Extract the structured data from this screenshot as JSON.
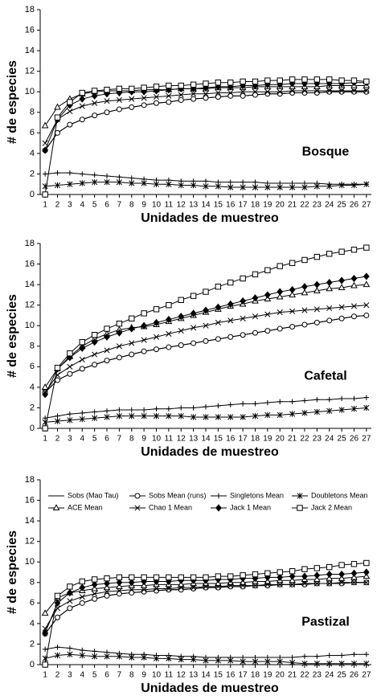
{
  "chart_data": [
    {
      "type": "line",
      "annotation": "Bosque",
      "xlabel": "Unidades de muestreo",
      "ylabel": "# de especies",
      "x": [
        1,
        2,
        3,
        4,
        5,
        6,
        7,
        8,
        9,
        10,
        11,
        12,
        13,
        14,
        15,
        16,
        17,
        18,
        19,
        20,
        21,
        22,
        23,
        24,
        25,
        26,
        27
      ],
      "xlim": [
        0.6,
        27.4
      ],
      "xticks": [
        1,
        2,
        3,
        4,
        5,
        6,
        7,
        8,
        9,
        10,
        11,
        12,
        13,
        14,
        15,
        16,
        17,
        18,
        19,
        20,
        21,
        22,
        23,
        24,
        25,
        26,
        27
      ],
      "ylim": [
        0,
        18
      ],
      "yticks": [
        0,
        2,
        4,
        6,
        8,
        10,
        12,
        14,
        16,
        18
      ],
      "series": [
        {
          "color": "#000000",
          "marker": "none",
          "values": [
            4.3,
            6.0,
            6.8,
            7.3,
            7.7,
            8.0,
            8.3,
            8.5,
            8.7,
            8.9,
            9.0,
            9.2,
            9.3,
            9.4,
            9.5,
            9.6,
            9.6,
            9.7,
            9.8,
            9.8,
            9.9,
            9.9,
            9.9,
            10.0,
            10.0,
            10.0,
            10.0
          ]
        },
        {
          "color": "#000000",
          "marker": "circle",
          "values": [
            4.3,
            6.0,
            6.8,
            7.3,
            7.7,
            8.0,
            8.3,
            8.5,
            8.7,
            8.9,
            9.0,
            9.2,
            9.3,
            9.4,
            9.5,
            9.6,
            9.6,
            9.7,
            9.8,
            9.8,
            9.9,
            9.9,
            9.9,
            10.0,
            10.0,
            10.0,
            10.0
          ]
        },
        {
          "color": "#000000",
          "marker": "plus",
          "values": [
            2.0,
            2.1,
            2.1,
            2.0,
            1.9,
            1.8,
            1.7,
            1.6,
            1.5,
            1.4,
            1.4,
            1.3,
            1.3,
            1.3,
            1.2,
            1.2,
            1.2,
            1.2,
            1.1,
            1.1,
            1.1,
            1.1,
            1.1,
            1.0,
            1.0,
            1.0,
            1.0
          ]
        },
        {
          "color": "#000000",
          "marker": "star",
          "values": [
            0.8,
            0.9,
            1.0,
            1.1,
            1.2,
            1.2,
            1.2,
            1.1,
            1.1,
            1.0,
            1.0,
            0.9,
            0.9,
            0.8,
            0.8,
            0.7,
            0.7,
            0.7,
            0.7,
            0.7,
            0.7,
            0.7,
            0.8,
            0.8,
            0.9,
            0.9,
            1.0
          ]
        },
        {
          "color": "#000000",
          "marker": "triangle",
          "values": [
            6.7,
            8.5,
            9.3,
            9.8,
            10.0,
            10.1,
            10.1,
            10.1,
            10.2,
            10.2,
            10.2,
            10.3,
            10.3,
            10.3,
            10.4,
            10.4,
            10.4,
            10.5,
            10.5,
            10.5,
            10.5,
            10.5,
            10.5,
            10.6,
            10.6,
            10.6,
            10.6
          ]
        },
        {
          "color": "#000000",
          "marker": "x",
          "values": [
            5.0,
            7.3,
            8.1,
            8.6,
            8.9,
            9.1,
            9.2,
            9.3,
            9.4,
            9.5,
            9.6,
            9.7,
            9.8,
            9.8,
            9.9,
            9.9,
            10.0,
            10.0,
            10.0,
            10.0,
            10.1,
            10.1,
            10.1,
            10.1,
            10.1,
            10.1,
            10.1
          ]
        },
        {
          "color": "#000000",
          "marker": "diamond",
          "values": [
            4.3,
            7.3,
            8.7,
            9.3,
            9.6,
            9.8,
            9.9,
            10.0,
            10.0,
            10.1,
            10.2,
            10.3,
            10.3,
            10.4,
            10.5,
            10.5,
            10.6,
            10.6,
            10.7,
            10.7,
            10.8,
            10.8,
            10.8,
            10.8,
            10.8,
            10.9,
            10.9
          ]
        },
        {
          "color": "#000000",
          "marker": "square",
          "values": [
            0.0,
            7.5,
            9.0,
            9.9,
            10.1,
            10.2,
            10.3,
            10.3,
            10.4,
            10.5,
            10.6,
            10.6,
            10.7,
            10.8,
            10.9,
            10.9,
            11.0,
            11.0,
            11.1,
            11.1,
            11.2,
            11.2,
            11.2,
            11.2,
            11.1,
            11.1,
            11.0
          ]
        }
      ]
    },
    {
      "type": "line",
      "annotation": "Cafetal",
      "xlabel": "Unidades de muestreo",
      "ylabel": "# de especies",
      "x": [
        1,
        2,
        3,
        4,
        5,
        6,
        7,
        8,
        9,
        10,
        11,
        12,
        13,
        14,
        15,
        16,
        17,
        18,
        19,
        20,
        21,
        22,
        23,
        24,
        25,
        26,
        27
      ],
      "xlim": [
        0.6,
        27.4
      ],
      "xticks": [
        1,
        2,
        3,
        4,
        5,
        6,
        7,
        8,
        9,
        10,
        11,
        12,
        13,
        14,
        15,
        16,
        17,
        18,
        19,
        20,
        21,
        22,
        23,
        24,
        25,
        26,
        27
      ],
      "ylim": [
        0,
        18
      ],
      "yticks": [
        0,
        2,
        4,
        6,
        8,
        10,
        12,
        14,
        16,
        18
      ],
      "series": [
        {
          "color": "#000000",
          "marker": "none",
          "values": [
            3.5,
            4.7,
            5.3,
            5.8,
            6.2,
            6.6,
            6.9,
            7.2,
            7.5,
            7.7,
            7.9,
            8.1,
            8.3,
            8.5,
            8.7,
            8.9,
            9.1,
            9.3,
            9.5,
            9.7,
            9.9,
            10.1,
            10.3,
            10.5,
            10.7,
            10.9,
            11.0
          ]
        },
        {
          "color": "#000000",
          "marker": "circle",
          "values": [
            3.5,
            4.7,
            5.3,
            5.8,
            6.2,
            6.6,
            6.9,
            7.2,
            7.5,
            7.7,
            7.9,
            8.1,
            8.3,
            8.5,
            8.7,
            8.9,
            9.1,
            9.3,
            9.5,
            9.7,
            9.9,
            10.1,
            10.3,
            10.5,
            10.7,
            10.9,
            11.0
          ]
        },
        {
          "color": "#000000",
          "marker": "plus",
          "values": [
            1.0,
            1.2,
            1.4,
            1.5,
            1.6,
            1.7,
            1.8,
            1.8,
            1.8,
            1.9,
            1.9,
            2.0,
            2.0,
            2.1,
            2.2,
            2.3,
            2.4,
            2.4,
            2.5,
            2.6,
            2.6,
            2.7,
            2.8,
            2.8,
            2.9,
            2.9,
            3.0
          ]
        },
        {
          "color": "#000000",
          "marker": "star",
          "values": [
            0.6,
            0.7,
            0.8,
            0.9,
            1.0,
            1.1,
            1.2,
            1.2,
            1.2,
            1.2,
            1.2,
            1.2,
            1.1,
            1.1,
            1.1,
            1.1,
            1.1,
            1.2,
            1.3,
            1.3,
            1.4,
            1.5,
            1.6,
            1.7,
            1.8,
            1.9,
            2.0
          ]
        },
        {
          "color": "#000000",
          "marker": "triangle",
          "values": [
            4.0,
            5.8,
            7.0,
            8.0,
            8.7,
            9.2,
            9.6,
            9.8,
            9.9,
            10.1,
            10.4,
            10.7,
            11.0,
            11.3,
            11.6,
            11.9,
            12.1,
            12.4,
            12.6,
            12.8,
            13.0,
            13.2,
            13.4,
            13.6,
            13.7,
            13.9,
            14.0
          ]
        },
        {
          "color": "#000000",
          "marker": "x",
          "values": [
            3.5,
            5.2,
            6.0,
            6.7,
            7.2,
            7.6,
            8.0,
            8.3,
            8.6,
            8.9,
            9.2,
            9.5,
            9.8,
            10.0,
            10.3,
            10.5,
            10.7,
            10.9,
            11.1,
            11.3,
            11.4,
            11.5,
            11.6,
            11.7,
            11.8,
            11.9,
            12.0
          ]
        },
        {
          "color": "#000000",
          "marker": "diamond",
          "values": [
            3.3,
            5.8,
            6.9,
            7.8,
            8.4,
            8.9,
            9.3,
            9.7,
            10.0,
            10.3,
            10.6,
            10.9,
            11.2,
            11.5,
            11.8,
            12.1,
            12.4,
            12.7,
            13.0,
            13.3,
            13.5,
            13.8,
            14.0,
            14.2,
            14.4,
            14.6,
            14.8
          ]
        },
        {
          "color": "#000000",
          "marker": "square",
          "values": [
            0.0,
            5.9,
            7.3,
            8.4,
            9.1,
            9.7,
            10.2,
            10.7,
            11.2,
            11.6,
            12.0,
            12.5,
            12.9,
            13.3,
            13.8,
            14.2,
            14.6,
            15.0,
            15.4,
            15.8,
            16.1,
            16.4,
            16.7,
            17.0,
            17.2,
            17.4,
            17.6
          ]
        }
      ]
    },
    {
      "type": "line",
      "annotation": "Pastizal",
      "xlabel": "Unidades de muestreo",
      "ylabel": "# de especies",
      "x": [
        1,
        2,
        3,
        4,
        5,
        6,
        7,
        8,
        9,
        10,
        11,
        12,
        13,
        14,
        15,
        16,
        17,
        18,
        19,
        20,
        21,
        22,
        23,
        24,
        25,
        26,
        27
      ],
      "xlim": [
        0.6,
        27.4
      ],
      "xticks": [
        1,
        2,
        3,
        4,
        5,
        6,
        7,
        8,
        9,
        10,
        11,
        12,
        13,
        14,
        15,
        16,
        17,
        18,
        19,
        20,
        21,
        22,
        23,
        24,
        25,
        26,
        27
      ],
      "ylim": [
        0,
        18
      ],
      "yticks": [
        0,
        2,
        4,
        6,
        8,
        10,
        12,
        14,
        16,
        18
      ],
      "legend": "top",
      "series": [
        {
          "name": "Sobs (Mao Tau)",
          "color": "#000000",
          "marker": "none",
          "values": [
            3.0,
            4.6,
            5.5,
            6.0,
            6.4,
            6.7,
            6.9,
            7.0,
            7.1,
            7.2,
            7.3,
            7.3,
            7.4,
            7.5,
            7.5,
            7.6,
            7.6,
            7.7,
            7.7,
            7.8,
            7.8,
            7.8,
            7.9,
            7.9,
            7.9,
            8.0,
            8.0
          ]
        },
        {
          "name": "Sobs Mean (runs)",
          "color": "#000000",
          "marker": "circle",
          "values": [
            3.0,
            4.6,
            5.5,
            6.0,
            6.4,
            6.7,
            6.9,
            7.0,
            7.1,
            7.2,
            7.3,
            7.3,
            7.4,
            7.5,
            7.5,
            7.6,
            7.6,
            7.7,
            7.7,
            7.8,
            7.8,
            7.8,
            7.9,
            7.9,
            7.9,
            8.0,
            8.0
          ]
        },
        {
          "name": "Singletons Mean",
          "color": "#000000",
          "marker": "plus",
          "values": [
            1.5,
            1.7,
            1.6,
            1.4,
            1.3,
            1.2,
            1.1,
            1.0,
            1.0,
            0.9,
            0.9,
            0.8,
            0.8,
            0.7,
            0.7,
            0.7,
            0.7,
            0.7,
            0.7,
            0.7,
            0.7,
            0.8,
            0.8,
            0.9,
            0.9,
            1.0,
            1.0
          ]
        },
        {
          "name": "Doubletons Mean",
          "color": "#000000",
          "marker": "star",
          "values": [
            0.6,
            0.9,
            1.0,
            0.9,
            0.8,
            0.8,
            0.8,
            0.7,
            0.7,
            0.6,
            0.6,
            0.5,
            0.5,
            0.4,
            0.4,
            0.4,
            0.3,
            0.3,
            0.3,
            0.3,
            0.2,
            0.1,
            0.1,
            0.1,
            0.1,
            0.1,
            0.1
          ]
        },
        {
          "name": "ACE Mean",
          "color": "#000000",
          "marker": "triangle",
          "values": [
            5.0,
            6.5,
            7.0,
            7.2,
            7.4,
            7.5,
            7.6,
            7.7,
            7.7,
            7.8,
            7.8,
            7.8,
            7.9,
            7.9,
            7.9,
            8.0,
            8.0,
            8.1,
            8.1,
            8.2,
            8.2,
            8.3,
            8.3,
            8.4,
            8.4,
            8.5,
            8.6
          ]
        },
        {
          "name": "Chao 1 Mean",
          "color": "#000000",
          "marker": "x",
          "values": [
            3.5,
            5.5,
            6.2,
            6.6,
            6.9,
            7.1,
            7.2,
            7.3,
            7.3,
            7.4,
            7.4,
            7.5,
            7.5,
            7.6,
            7.6,
            7.7,
            7.7,
            7.7,
            7.8,
            7.8,
            7.8,
            7.9,
            7.9,
            7.9,
            8.0,
            8.0,
            8.0
          ]
        },
        {
          "name": "Jack 1 Mean",
          "color": "#000000",
          "marker": "diamond",
          "values": [
            3.1,
            6.0,
            7.0,
            7.5,
            7.8,
            7.9,
            8.0,
            8.0,
            8.1,
            8.1,
            8.1,
            8.2,
            8.2,
            8.2,
            8.3,
            8.3,
            8.4,
            8.4,
            8.5,
            8.5,
            8.6,
            8.6,
            8.7,
            8.8,
            8.8,
            8.9,
            9.0
          ]
        },
        {
          "name": "Jack 2 Mean",
          "color": "#000000",
          "marker": "square",
          "values": [
            0.0,
            6.7,
            7.6,
            8.1,
            8.3,
            8.4,
            8.5,
            8.5,
            8.5,
            8.5,
            8.5,
            8.5,
            8.5,
            8.5,
            8.6,
            8.6,
            8.7,
            8.8,
            8.9,
            9.0,
            9.1,
            9.3,
            9.4,
            9.5,
            9.7,
            9.8,
            9.9
          ]
        }
      ]
    }
  ]
}
